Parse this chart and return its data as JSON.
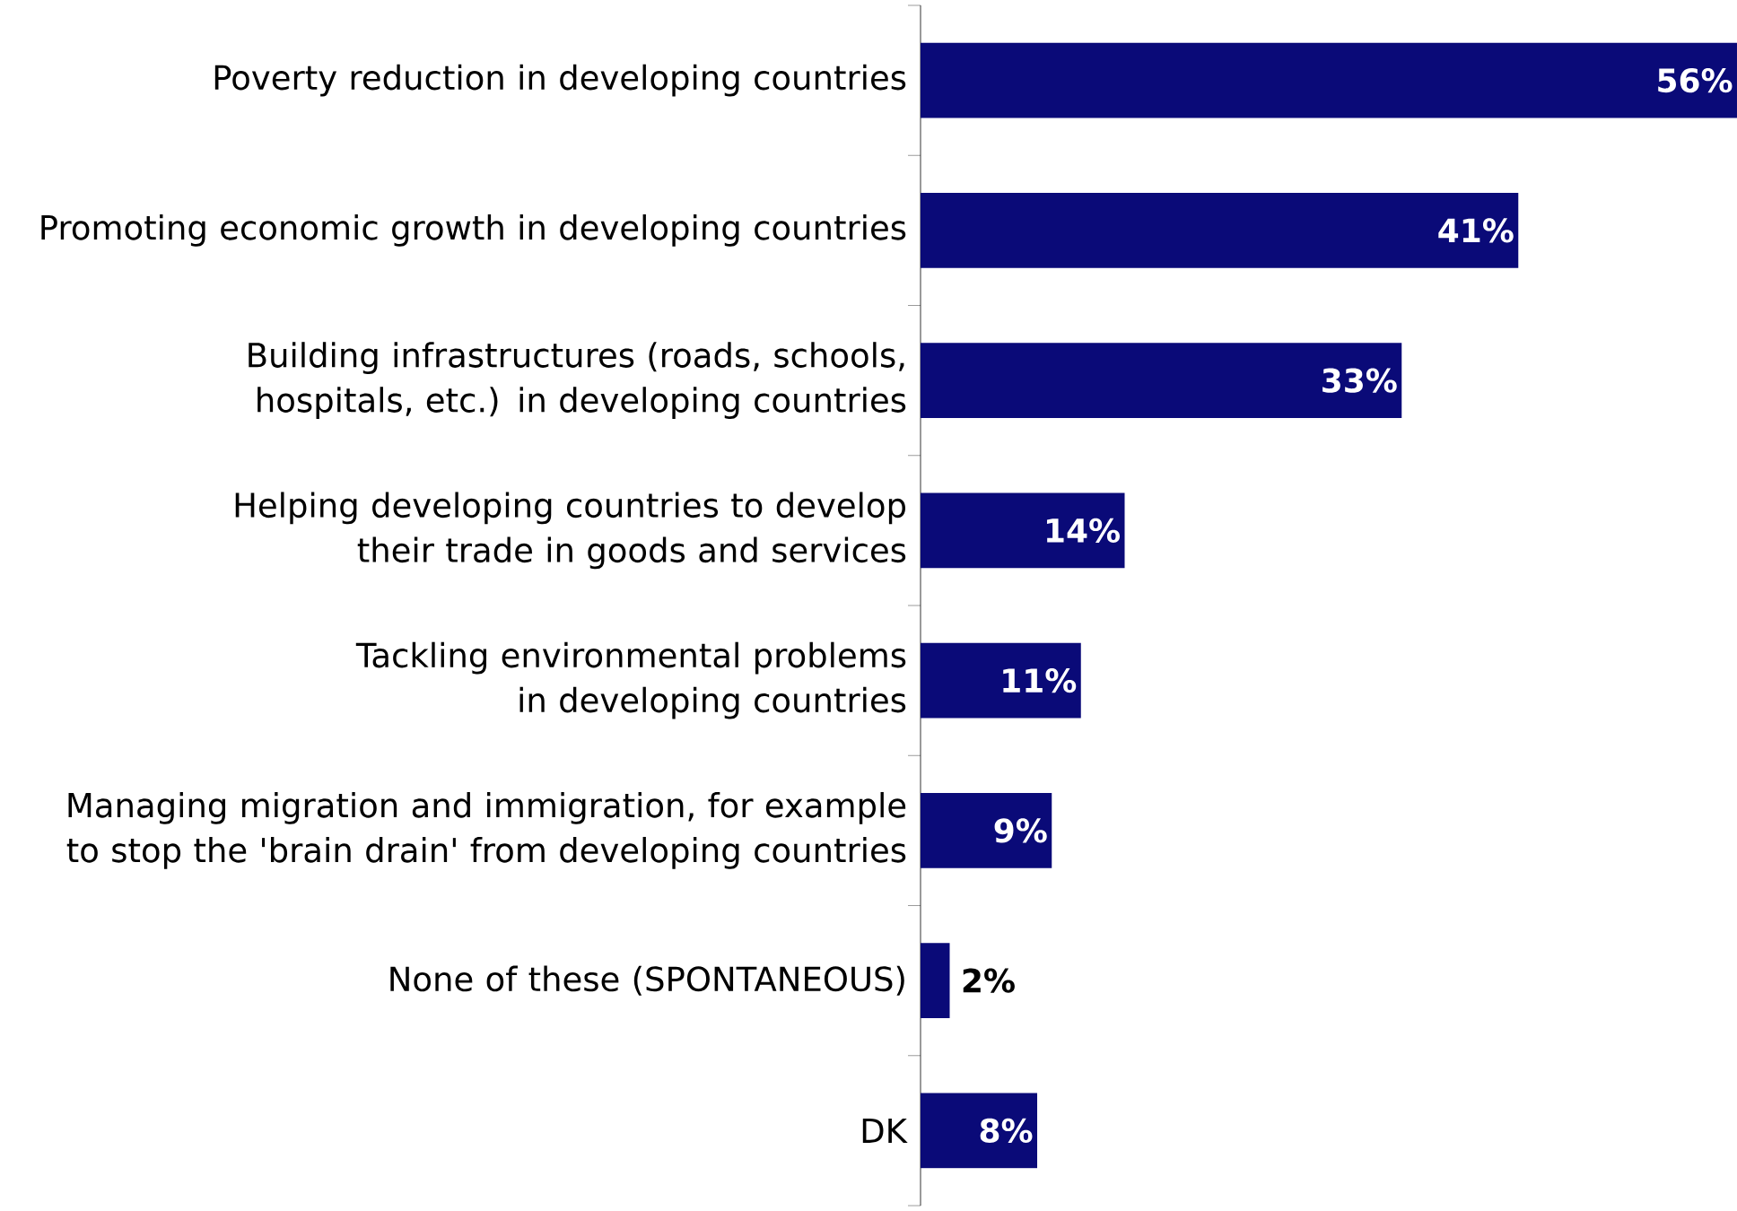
{
  "chart_data": {
    "type": "bar",
    "orientation": "horizontal",
    "categories": [
      "Poverty reduction in developing countries",
      "Promoting economic growth in developing countries",
      "Building infrastructures (roads, schools, hospitals, etc.) in developing countries",
      "Helping developing countries to develop their trade in goods and services",
      "Tackling environmental problems in developing countries",
      "Managing migration and immigration, for example to stop the 'brain drain' from developing countries",
      "None of these (SPONTANEOUS)",
      "DK"
    ],
    "values": [
      56,
      41,
      33,
      14,
      11,
      9,
      2,
      8
    ],
    "value_labels": [
      "56%",
      "41%",
      "33%",
      "14%",
      "11%",
      "9%",
      "2%",
      "8%"
    ],
    "color": "#0a0a78",
    "xlim": [
      0,
      56
    ],
    "tick_labels": "y"
  }
}
